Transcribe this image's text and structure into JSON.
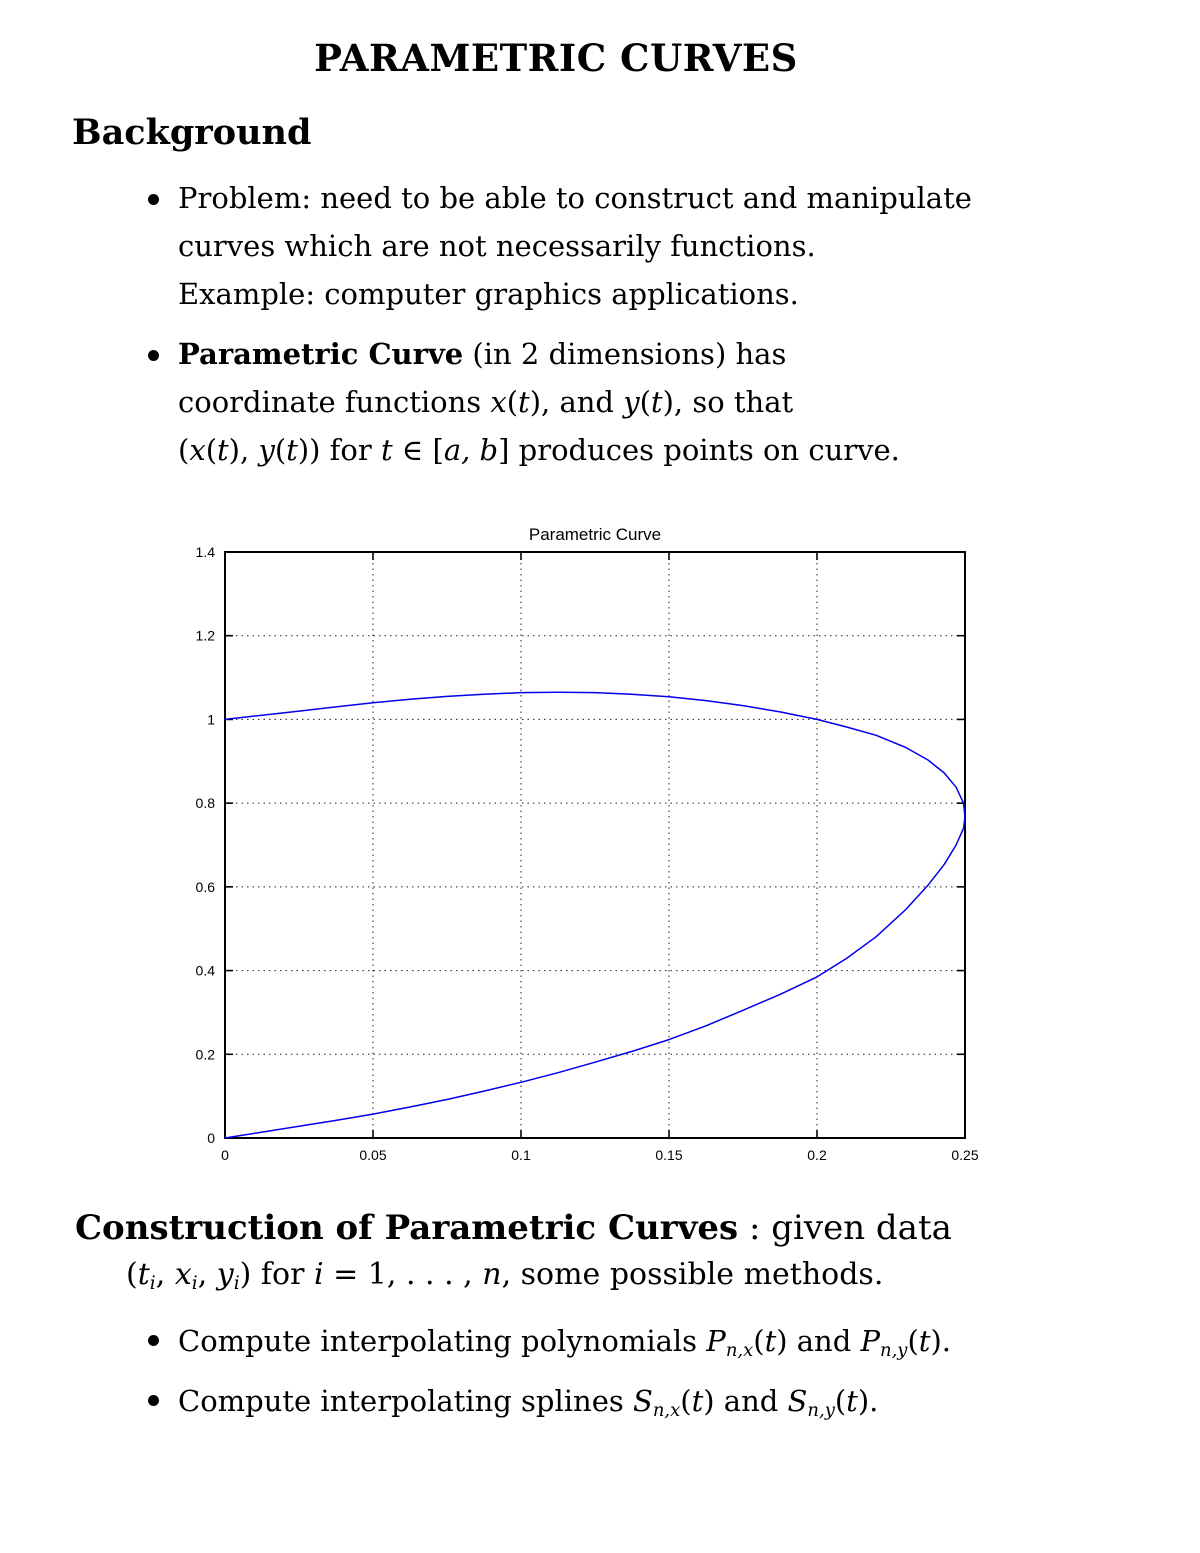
{
  "page_title": "PARAMETRIC CURVES",
  "background": {
    "heading": "Background",
    "bullets": [
      {
        "lines": [
          [
            {
              "t": "Problem: need to be able to construct and manipulate",
              "s": "r"
            }
          ],
          [
            {
              "t": "curves which are not necessarily functions.",
              "s": "r"
            }
          ],
          [
            {
              "t": "Example: computer graphics applications.",
              "s": "r"
            }
          ]
        ]
      },
      {
        "lines": [
          [
            {
              "t": "Parametric Curve",
              "s": "b"
            },
            {
              "t": " (in 2 dimensions) has",
              "s": "r"
            }
          ],
          [
            {
              "t": "coordinate functions ",
              "s": "r"
            },
            {
              "t": "x",
              "s": "i"
            },
            {
              "t": "(",
              "s": "r"
            },
            {
              "t": "t",
              "s": "i"
            },
            {
              "t": "), and ",
              "s": "r"
            },
            {
              "t": "y",
              "s": "i"
            },
            {
              "t": "(",
              "s": "r"
            },
            {
              "t": "t",
              "s": "i"
            },
            {
              "t": "), so that",
              "s": "r"
            }
          ],
          [
            {
              "t": "(",
              "s": "r"
            },
            {
              "t": "x",
              "s": "i"
            },
            {
              "t": "(",
              "s": "r"
            },
            {
              "t": "t",
              "s": "i"
            },
            {
              "t": "), ",
              "s": "r"
            },
            {
              "t": "y",
              "s": "i"
            },
            {
              "t": "(",
              "s": "r"
            },
            {
              "t": "t",
              "s": "i"
            },
            {
              "t": ")) for ",
              "s": "r"
            },
            {
              "t": "t",
              "s": "i"
            },
            {
              "t": " ∈ [",
              "s": "r"
            },
            {
              "t": "a, b",
              "s": "i"
            },
            {
              "t": "] produces points on curve.",
              "s": "r"
            }
          ]
        ]
      }
    ]
  },
  "construction": {
    "heading_segments": [
      {
        "t": "Construction of Parametric Curves",
        "s": "b"
      },
      {
        "t": " : given data",
        "s": "r"
      }
    ],
    "subline_segments": [
      {
        "t": "(",
        "s": "r"
      },
      {
        "t": "t",
        "s": "i"
      },
      {
        "t": "i",
        "s": "sub"
      },
      {
        "t": ", ",
        "s": "r"
      },
      {
        "t": "x",
        "s": "i"
      },
      {
        "t": "i",
        "s": "sub"
      },
      {
        "t": ", ",
        "s": "r"
      },
      {
        "t": "y",
        "s": "i"
      },
      {
        "t": "i",
        "s": "sub"
      },
      {
        "t": ") for ",
        "s": "r"
      },
      {
        "t": "i",
        "s": "i"
      },
      {
        "t": " = 1, . . . , ",
        "s": "r"
      },
      {
        "t": "n",
        "s": "i"
      },
      {
        "t": ", some possible methods.",
        "s": "r"
      }
    ],
    "bullets": [
      {
        "segments": [
          {
            "t": "Compute interpolating polynomials ",
            "s": "r"
          },
          {
            "t": "P",
            "s": "i"
          },
          {
            "t": "n,x",
            "s": "sub"
          },
          {
            "t": "(",
            "s": "r"
          },
          {
            "t": "t",
            "s": "i"
          },
          {
            "t": ") and ",
            "s": "r"
          },
          {
            "t": "P",
            "s": "i"
          },
          {
            "t": "n,y",
            "s": "sub"
          },
          {
            "t": "(",
            "s": "r"
          },
          {
            "t": "t",
            "s": "i"
          },
          {
            "t": ").",
            "s": "r"
          }
        ]
      },
      {
        "segments": [
          {
            "t": "Compute interpolating splines ",
            "s": "r"
          },
          {
            "t": "S",
            "s": "i"
          },
          {
            "t": "n,x",
            "s": "sub"
          },
          {
            "t": "(",
            "s": "r"
          },
          {
            "t": "t",
            "s": "i"
          },
          {
            "t": ") and ",
            "s": "r"
          },
          {
            "t": "S",
            "s": "i"
          },
          {
            "t": "n,y",
            "s": "sub"
          },
          {
            "t": "(",
            "s": "r"
          },
          {
            "t": "t",
            "s": "i"
          },
          {
            "t": ").",
            "s": "r"
          }
        ]
      }
    ]
  },
  "chart_data": {
    "type": "line",
    "title": "Parametric Curve",
    "xlabel": "",
    "ylabel": "",
    "xlim": [
      0,
      0.25
    ],
    "ylim": [
      0,
      1.4
    ],
    "xticks": [
      0,
      0.05,
      0.1,
      0.15,
      0.2,
      0.25
    ],
    "yticks": [
      0,
      0.2,
      0.4,
      0.6,
      0.8,
      1,
      1.2,
      1.4
    ],
    "xtick_labels": [
      "0",
      "0.05",
      "0.1",
      "0.15",
      "0.2",
      "0.25"
    ],
    "ytick_labels": [
      "0",
      "0.2",
      "0.4",
      "0.6",
      "0.8",
      "1",
      "1.2",
      "1.4"
    ],
    "grid": true,
    "legend": "none",
    "line_color": "#0000ee",
    "axis_color": "#000000",
    "series": [
      {
        "name": "parametric curve (x(t), y(t))",
        "points": [
          [
            0,
            0
          ],
          [
            0.0125,
            0.014
          ],
          [
            0.025,
            0.028
          ],
          [
            0.0375,
            0.042
          ],
          [
            0.05,
            0.057
          ],
          [
            0.0625,
            0.074
          ],
          [
            0.075,
            0.092
          ],
          [
            0.0875,
            0.112
          ],
          [
            0.1,
            0.133
          ],
          [
            0.1125,
            0.156
          ],
          [
            0.125,
            0.181
          ],
          [
            0.1375,
            0.207
          ],
          [
            0.15,
            0.235
          ],
          [
            0.1625,
            0.268
          ],
          [
            0.175,
            0.305
          ],
          [
            0.1875,
            0.343
          ],
          [
            0.2,
            0.385
          ],
          [
            0.21,
            0.429
          ],
          [
            0.22,
            0.481
          ],
          [
            0.23,
            0.546
          ],
          [
            0.2375,
            0.604
          ],
          [
            0.243,
            0.654
          ],
          [
            0.247,
            0.7
          ],
          [
            0.2495,
            0.74
          ],
          [
            0.25,
            0.768
          ],
          [
            0.2495,
            0.8
          ],
          [
            0.247,
            0.838
          ],
          [
            0.243,
            0.872
          ],
          [
            0.2375,
            0.903
          ],
          [
            0.23,
            0.933
          ],
          [
            0.22,
            0.962
          ],
          [
            0.21,
            0.982
          ],
          [
            0.2,
            1.0
          ],
          [
            0.1875,
            1.018
          ],
          [
            0.175,
            1.033
          ],
          [
            0.1625,
            1.045
          ],
          [
            0.15,
            1.054
          ],
          [
            0.1375,
            1.06
          ],
          [
            0.125,
            1.064
          ],
          [
            0.1125,
            1.065
          ],
          [
            0.1,
            1.064
          ],
          [
            0.0875,
            1.06
          ],
          [
            0.075,
            1.055
          ],
          [
            0.0625,
            1.048
          ],
          [
            0.05,
            1.04
          ],
          [
            0.0375,
            1.03
          ],
          [
            0.025,
            1.02
          ],
          [
            0.0125,
            1.01
          ],
          [
            0,
            1.0
          ]
        ]
      }
    ]
  }
}
